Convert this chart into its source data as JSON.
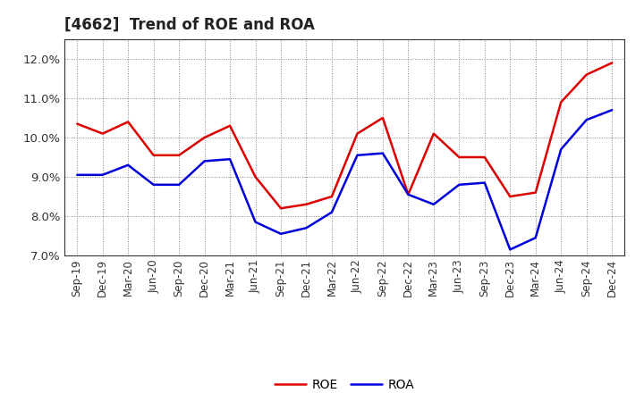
{
  "title": "[4662]  Trend of ROE and ROA",
  "x_labels": [
    "Sep-19",
    "Dec-19",
    "Mar-20",
    "Jun-20",
    "Sep-20",
    "Dec-20",
    "Mar-21",
    "Jun-21",
    "Sep-21",
    "Dec-21",
    "Mar-22",
    "Jun-22",
    "Sep-22",
    "Dec-22",
    "Mar-23",
    "Jun-23",
    "Sep-23",
    "Dec-23",
    "Mar-24",
    "Jun-24",
    "Sep-24",
    "Dec-24"
  ],
  "roe": [
    10.35,
    10.1,
    10.4,
    9.55,
    9.55,
    10.0,
    10.3,
    9.0,
    8.2,
    8.3,
    8.5,
    10.1,
    10.5,
    8.55,
    10.1,
    9.5,
    9.5,
    8.5,
    8.6,
    10.9,
    11.6,
    11.9
  ],
  "roa": [
    9.05,
    9.05,
    9.3,
    8.8,
    8.8,
    9.4,
    9.45,
    7.85,
    7.55,
    7.7,
    8.1,
    9.55,
    9.6,
    8.55,
    8.3,
    8.8,
    8.85,
    7.15,
    7.45,
    9.7,
    10.45,
    10.7
  ],
  "roe_color": "#dd0000",
  "roa_color": "#0000dd",
  "ylim": [
    7.0,
    12.5
  ],
  "yticks": [
    7.0,
    8.0,
    9.0,
    10.0,
    11.0,
    12.0
  ],
  "ytick_labels": [
    "7.0%",
    "8.0%",
    "9.0%",
    "10.0%",
    "11.0%",
    "12.0%"
  ],
  "background_color": "#ffffff",
  "plot_bg_color": "#ffffff",
  "grid_color": "#888888",
  "linewidth": 1.8,
  "title_fontsize": 12,
  "tick_fontsize": 8.5,
  "legend_fontsize": 10
}
